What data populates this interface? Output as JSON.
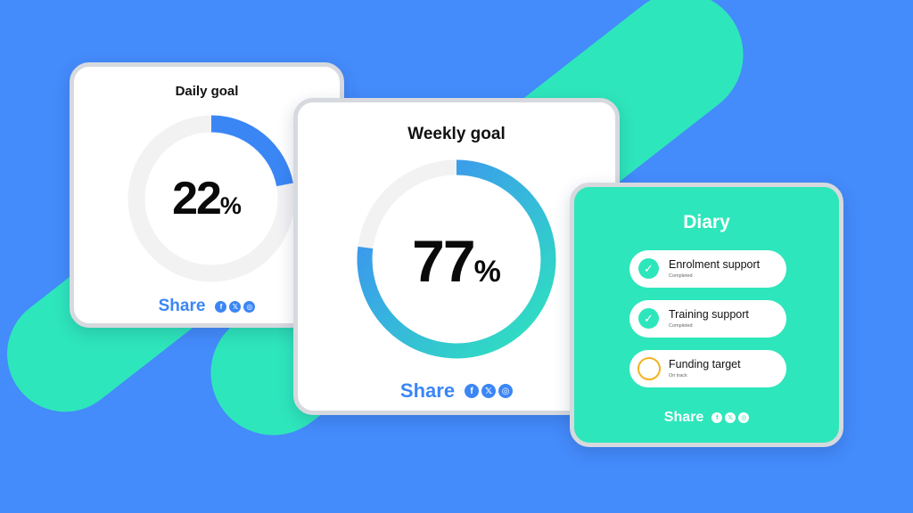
{
  "colors": {
    "background": "#448bfb",
    "accent_green": "#2ee6bb",
    "accent_blue": "#3b86f5",
    "pending_yellow": "#f2b21f",
    "ring_track": "#f2f2f3"
  },
  "daily": {
    "title": "Daily goal",
    "value": "22",
    "unit": "%",
    "progress": 0.22,
    "share_label": "Share",
    "social": [
      {
        "icon": "facebook-icon",
        "glyph": "f"
      },
      {
        "icon": "x-icon",
        "glyph": "𝕏"
      },
      {
        "icon": "instagram-icon",
        "glyph": "◎"
      }
    ]
  },
  "weekly": {
    "title": "Weekly goal",
    "value": "77",
    "unit": "%",
    "progress": 0.77,
    "share_label": "Share",
    "social": [
      {
        "icon": "facebook-icon",
        "glyph": "f"
      },
      {
        "icon": "x-icon",
        "glyph": "𝕏"
      },
      {
        "icon": "instagram-icon",
        "glyph": "◎"
      }
    ]
  },
  "diary": {
    "title": "Diary",
    "items": [
      {
        "title": "Enrolment support",
        "status": "Completed",
        "done": true,
        "icon": "check-icon"
      },
      {
        "title": "Training support",
        "status": "Completed",
        "done": true,
        "icon": "check-icon"
      },
      {
        "title": "Funding target",
        "status": "On track",
        "done": false,
        "icon": "pending-circle-icon"
      }
    ],
    "share_label": "Share",
    "social": [
      {
        "icon": "facebook-icon",
        "glyph": "f"
      },
      {
        "icon": "x-icon",
        "glyph": "𝕏"
      },
      {
        "icon": "instagram-icon",
        "glyph": "◎"
      }
    ]
  }
}
